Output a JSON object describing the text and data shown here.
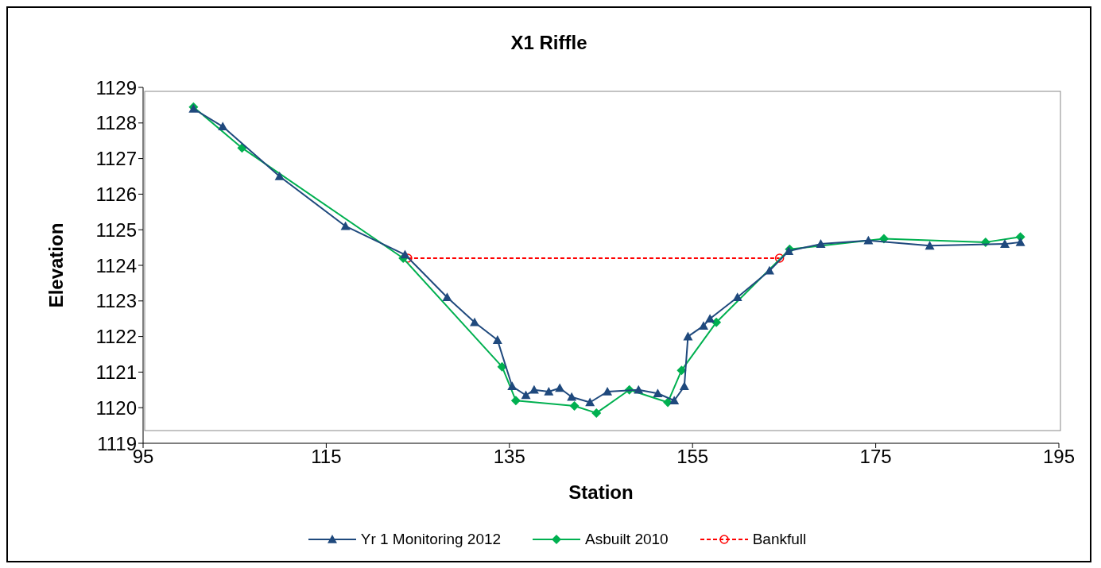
{
  "chart_data": {
    "type": "line",
    "title": "X1 Riffle",
    "xlabel": "Station",
    "ylabel": "Elevation",
    "xlim": [
      95,
      195
    ],
    "xticks": [
      95,
      115,
      135,
      155,
      175,
      195
    ],
    "ylim": [
      1119,
      1129
    ],
    "yticks": [
      1119,
      1120,
      1121,
      1122,
      1123,
      1124,
      1125,
      1126,
      1127,
      1128,
      1129
    ],
    "grid": false,
    "legend": "bottom",
    "series": [
      {
        "name": "Yr 1 Monitoring 2012",
        "color": "#1f497d",
        "marker": "triangle",
        "line_style": "solid",
        "x": [
          100.5,
          103.7,
          109.9,
          117.1,
          123.6,
          128.2,
          131.2,
          133.7,
          135.3,
          136.8,
          137.7,
          139.3,
          140.5,
          141.8,
          143.8,
          145.7,
          149.1,
          151.2,
          153.0,
          154.1,
          154.5,
          156.2,
          156.9,
          159.9,
          163.4,
          165.5,
          169.0,
          174.2,
          180.9,
          189.1,
          190.8
        ],
        "values": [
          1128.4,
          1127.9,
          1126.5,
          1125.1,
          1124.3,
          1123.1,
          1122.4,
          1121.9,
          1120.6,
          1120.35,
          1120.5,
          1120.45,
          1120.55,
          1120.3,
          1120.15,
          1120.45,
          1120.5,
          1120.4,
          1120.2,
          1120.6,
          1122.0,
          1122.3,
          1122.5,
          1123.1,
          1123.85,
          1124.4,
          1124.6,
          1124.7,
          1124.55,
          1124.6,
          1124.65
        ]
      },
      {
        "name": "Asbuilt 2010",
        "color": "#00b050",
        "marker": "diamond",
        "line_style": "solid",
        "x": [
          100.5,
          105.8,
          123.4,
          134.2,
          135.7,
          142.1,
          144.5,
          148.1,
          152.3,
          153.8,
          157.6,
          165.6,
          175.9,
          187.0,
          190.8
        ],
        "values": [
          1128.45,
          1127.3,
          1124.2,
          1121.15,
          1120.2,
          1120.05,
          1119.85,
          1120.5,
          1120.15,
          1121.05,
          1122.4,
          1124.45,
          1124.75,
          1124.65,
          1124.8
        ]
      },
      {
        "name": "Bankfull",
        "color": "#ff0000",
        "marker": "circle",
        "line_style": "dashed",
        "x": [
          123.9,
          164.5
        ],
        "values": [
          1124.2,
          1124.2
        ]
      }
    ]
  }
}
